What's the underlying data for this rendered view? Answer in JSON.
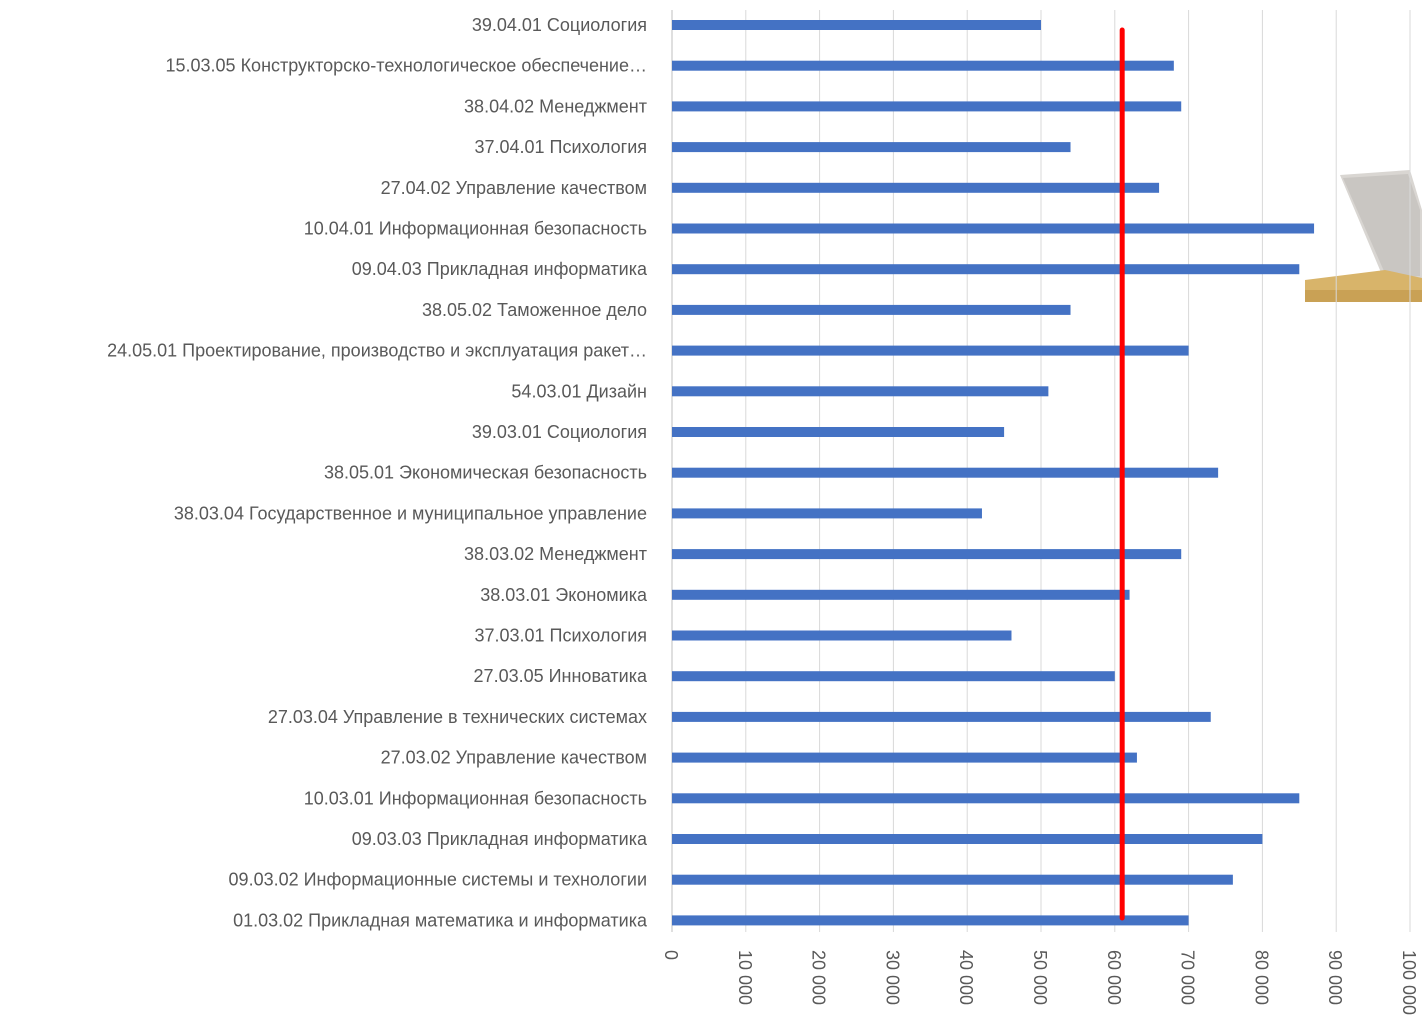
{
  "chart_data": {
    "type": "bar",
    "orientation": "horizontal",
    "categories": [
      "39.04.01 Социология",
      "15.03.05 Конструкторско-технологическое обеспечение…",
      "38.04.02 Менеджмент",
      "37.04.01 Психология",
      "27.04.02 Управление качеством",
      "10.04.01 Информационная безопасность",
      "09.04.03 Прикладная информатика",
      "38.05.02 Таможенное дело",
      "24.05.01 Проектирование, производство и эксплуатация ракет…",
      "54.03.01 Дизайн",
      "39.03.01 Социология",
      "38.05.01 Экономическая безопасность",
      "38.03.04 Государственное и муниципальное управление",
      "38.03.02 Менеджмент",
      "38.03.01 Экономика",
      "37.03.01 Психология",
      "27.03.05 Инноватика",
      "27.03.04 Управление в технических системах",
      "27.03.02 Управление качеством",
      "10.03.01 Информационная безопасность",
      "09.03.03 Прикладная информатика",
      "09.03.02 Информационные системы и технологии",
      "01.03.02 Прикладная математика и информатика"
    ],
    "values": [
      50000,
      68000,
      69000,
      54000,
      66000,
      87000,
      85000,
      54000,
      70000,
      51000,
      45000,
      74000,
      42000,
      69000,
      62000,
      46000,
      60000,
      73000,
      63000,
      85000,
      80000,
      76000,
      70000
    ],
    "xlim": [
      0,
      100000
    ],
    "ticks": [
      0,
      10000,
      20000,
      30000,
      40000,
      50000,
      60000,
      70000,
      80000,
      90000,
      100000
    ],
    "tick_labels": [
      "0",
      "10 000",
      "20 000",
      "30 000",
      "40 000",
      "50 000",
      "60 000",
      "70 000",
      "80 000",
      "90 000",
      "100 000"
    ],
    "reference_line": {
      "value": 61000,
      "color": "#ff0000"
    },
    "bar_color": "#4472c4",
    "grid": true,
    "legend": "none",
    "title": "",
    "xlabel": "",
    "ylabel": ""
  }
}
